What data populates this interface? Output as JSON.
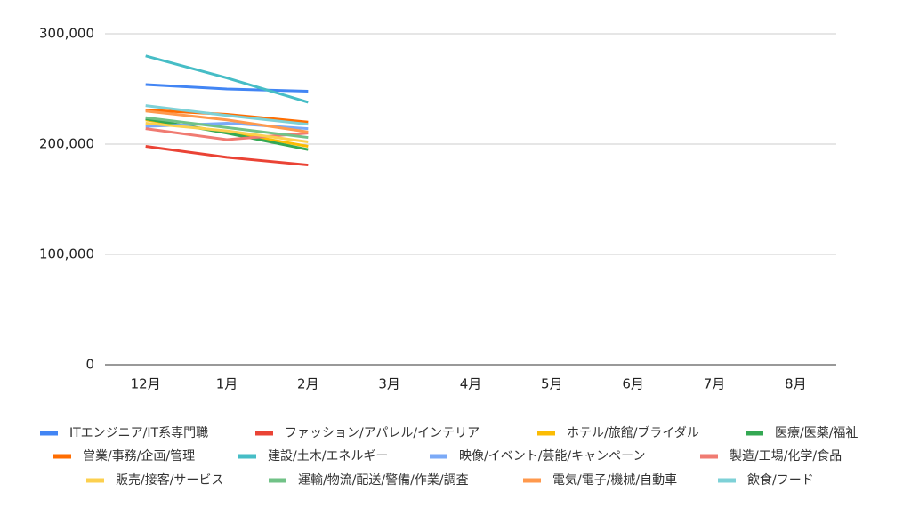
{
  "chart_data": {
    "type": "line",
    "categories": [
      "12月",
      "1月",
      "2月",
      "3月",
      "4月",
      "5月",
      "6月",
      "7月",
      "8月"
    ],
    "ylim": [
      0,
      300000
    ],
    "yticks": [
      0,
      {
        "value": 100000,
        "label": "100,000"
      },
      {
        "value": 200000,
        "label": "200,000"
      },
      {
        "value": 300000,
        "label": "300,000"
      }
    ],
    "grid": true,
    "legend": "bottom",
    "series": [
      {
        "name": "ITエンジニア/IT系専門職",
        "color": "#4285f4",
        "values": [
          254000,
          250000,
          248000,
          null,
          null,
          null,
          null,
          null,
          null
        ]
      },
      {
        "name": "ファッション/アパレル/インテリア",
        "color": "#ea4335",
        "values": [
          198000,
          188000,
          181000,
          null,
          null,
          null,
          null,
          null,
          null
        ]
      },
      {
        "name": "ホテル/旅館/ブライダル",
        "color": "#fbbc04",
        "values": [
          222000,
          211000,
          198000,
          null,
          null,
          null,
          null,
          null,
          null
        ]
      },
      {
        "name": "医療/医薬/福祉",
        "color": "#34a853",
        "values": [
          223000,
          210000,
          195000,
          null,
          null,
          null,
          null,
          null,
          null
        ]
      },
      {
        "name": "営業/事務/企画/管理",
        "color": "#ff6d01",
        "values": [
          231000,
          227000,
          220000,
          null,
          null,
          null,
          null,
          null,
          null
        ]
      },
      {
        "name": "建設/土木/エネルギー",
        "color": "#46bdc6",
        "values": [
          280000,
          260000,
          238000,
          null,
          null,
          null,
          null,
          null,
          null
        ]
      },
      {
        "name": "映像/イベント/芸能/キャンペーン",
        "color": "#7baaf7",
        "values": [
          216000,
          219000,
          214000,
          null,
          null,
          null,
          null,
          null,
          null
        ]
      },
      {
        "name": "製造/工場/化学/食品",
        "color": "#f07b72",
        "values": [
          214000,
          204000,
          210000,
          null,
          null,
          null,
          null,
          null,
          null
        ]
      },
      {
        "name": "販売/接客/サービス",
        "color": "#fcd04f",
        "values": [
          219000,
          212000,
          202000,
          null,
          null,
          null,
          null,
          null,
          null
        ]
      },
      {
        "name": "運輸/物流/配送/警備/作業/調査",
        "color": "#71c287",
        "values": [
          224000,
          215000,
          206000,
          null,
          null,
          null,
          null,
          null,
          null
        ]
      },
      {
        "name": "電気/電子/機械/自動車",
        "color": "#ff994d",
        "values": [
          230000,
          222000,
          211000,
          null,
          null,
          null,
          null,
          null,
          null
        ]
      },
      {
        "name": "飲食/フード",
        "color": "#7ed1d7",
        "values": [
          235000,
          226000,
          218000,
          null,
          null,
          null,
          null,
          null,
          null
        ]
      }
    ]
  }
}
